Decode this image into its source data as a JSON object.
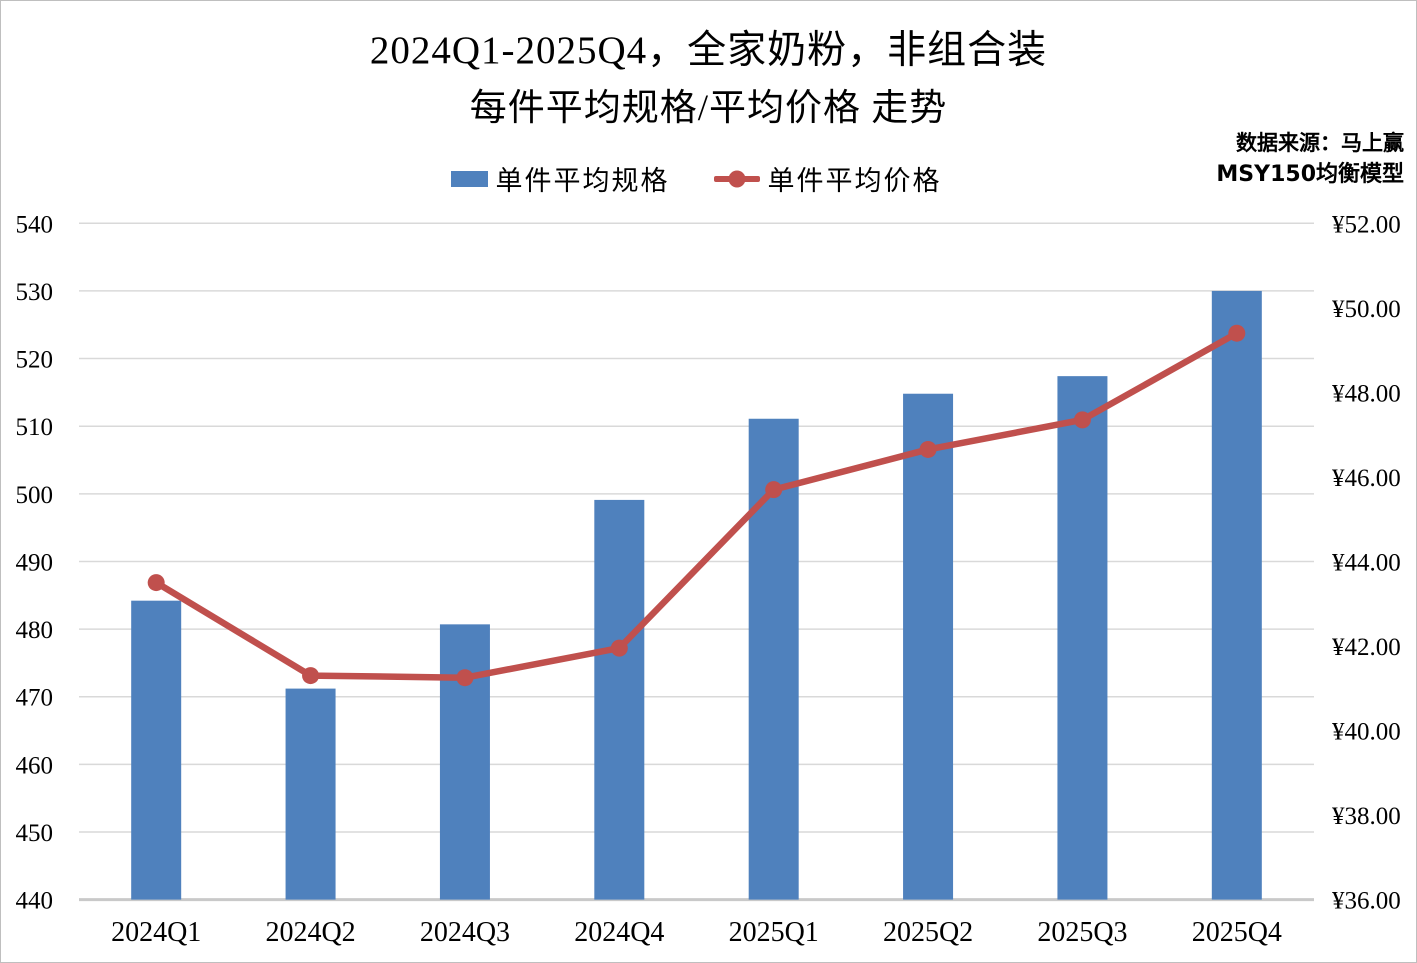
{
  "title": {
    "line1": "2024Q1-2025Q4，全家奶粉，非组合装",
    "line2": "每件平均规格/平均价格 走势"
  },
  "source": {
    "line1": "数据来源：马上赢",
    "line2": "MSY150均衡模型"
  },
  "legend": {
    "items": [
      {
        "label": "单件平均规格",
        "marker": "bar-swatch",
        "color": "#4F81BD"
      },
      {
        "label": "单件平均价格",
        "marker": "line-dot-swatch",
        "color": "#C0504D"
      }
    ]
  },
  "chart_data": {
    "type": "bar",
    "subtype": "combo-bar-line-dual-axis",
    "title": "2024Q1-2025Q4，全家奶粉，非组合装 每件平均规格/平均价格 走势",
    "categories": [
      "2024Q1",
      "2024Q2",
      "2024Q3",
      "2024Q4",
      "2025Q1",
      "2025Q2",
      "2025Q3",
      "2025Q4"
    ],
    "series": [
      {
        "name": "单件平均规格",
        "type": "bar",
        "axis": "left",
        "color": "#4F81BD",
        "values": [
          484.2,
          471.2,
          480.7,
          499.1,
          511.1,
          514.8,
          517.4,
          530.0
        ]
      },
      {
        "name": "单件平均价格",
        "type": "line",
        "axis": "right",
        "color": "#C0504D",
        "values": [
          43.5,
          41.3,
          41.25,
          41.95,
          45.7,
          46.65,
          47.35,
          49.4
        ]
      }
    ],
    "left_axis": {
      "min": 440,
      "max": 540,
      "step": 10,
      "ticks": [
        "440",
        "450",
        "460",
        "470",
        "480",
        "490",
        "500",
        "510",
        "520",
        "530",
        "540"
      ]
    },
    "right_axis": {
      "min": 36,
      "max": 52,
      "step": 2,
      "ticks": [
        "¥36.00",
        "¥38.00",
        "¥40.00",
        "¥42.00",
        "¥44.00",
        "¥46.00",
        "¥48.00",
        "¥50.00",
        "¥52.00"
      ]
    },
    "grid": true,
    "gridline_color": "#D9D9D9",
    "axis_line_color": "#C9C9C9",
    "legend_position": "top-center"
  }
}
